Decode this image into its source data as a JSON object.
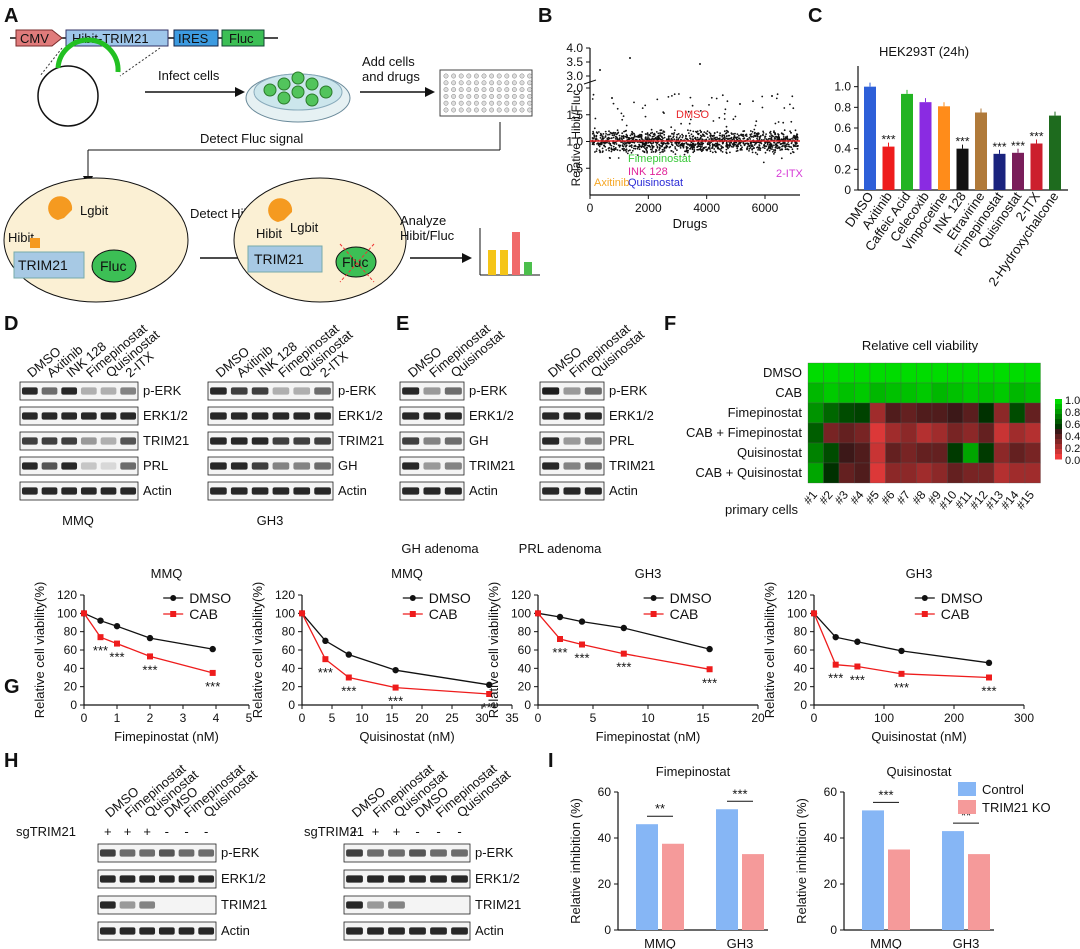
{
  "panels": [
    "A",
    "B",
    "C",
    "D",
    "E",
    "F",
    "G",
    "H",
    "I"
  ],
  "A": {
    "construct": [
      "CMV",
      "Hibit-TRIM21",
      "IRES",
      "Fluc"
    ],
    "infect": "Infect  cells",
    "add": "Add cells\nand drugs",
    "detect_fluc": "Detect Fluc signal",
    "detect_hibit": "Detect Hibit signal",
    "analyze": "Analyze\nHibit/Fluc",
    "lgbit": "Lgbit",
    "hibit": "Hibit",
    "trim21": "TRIM21",
    "fluc": "Fluc"
  },
  "B": {
    "ylabel": "Relative Hibit/Fluc",
    "xlabel": "Drugs",
    "yticks_low": [
      "0.5",
      "1.0",
      "1.5",
      "2.0"
    ],
    "yticks_high": [
      "3.0",
      "3.5",
      "4.0"
    ],
    "xticks": [
      "0",
      "2000",
      "4000",
      "6000"
    ],
    "labels": [
      {
        "text": "DMSO",
        "color": "#e8262a"
      },
      {
        "text": "Fimepinostat",
        "color": "#37c837"
      },
      {
        "text": "INK 128",
        "color": "#e0249a"
      },
      {
        "text": "Axitinib",
        "color": "#f5a623"
      },
      {
        "text": "Quisinostat",
        "color": "#2b2bd6"
      },
      {
        "text": "2-ITX",
        "color": "#d63bd6"
      }
    ]
  },
  "C": {
    "title": "HEK293T (24h)",
    "stars": "***",
    "yticks": [
      "0",
      "0.2",
      "0.4",
      "0.6",
      "0.8",
      "1.0"
    ],
    "chart_data": {
      "type": "bar",
      "title": "HEK293T (24h)",
      "categories": [
        "DMSO",
        "Axitinib",
        "Caffeic Acid",
        "Celecoxib",
        "Vinpocetine",
        "INK 128",
        "Etravirine",
        "Fimepinostat",
        "Quisinostat",
        "2-ITX",
        "2-Hydroxychalcone"
      ],
      "values": [
        1.0,
        0.42,
        0.93,
        0.85,
        0.81,
        0.4,
        0.75,
        0.35,
        0.36,
        0.45,
        0.72
      ],
      "colors": [
        "#2d5fd8",
        "#ee1c1c",
        "#22b422",
        "#8a2be2",
        "#ff8c1a",
        "#111111",
        "#b07a3a",
        "#1a237e",
        "#7a1e5a",
        "#cc1f2d",
        "#1e6b1e"
      ],
      "significant": [
        false,
        true,
        false,
        false,
        false,
        true,
        false,
        true,
        true,
        true,
        false
      ],
      "ylim": [
        0,
        1.2
      ]
    }
  },
  "D": {
    "left_lanes": [
      "DMSO",
      "Axitinib",
      "INK 128",
      "Fimepinostat",
      "Quisinostat",
      "2-ITX"
    ],
    "left_rows": [
      "p-ERK",
      "ERK1/2",
      "TRIM21",
      "PRL",
      "Actin"
    ],
    "left_label": "MMQ",
    "right_lanes": [
      "DMSO",
      "Axitinib",
      "INK 128",
      "Fimepinostat",
      "Quisinostat",
      "2-ITX"
    ],
    "right_rows": [
      "p-ERK",
      "ERK1/2",
      "TRIM21",
      "GH",
      "Actin"
    ],
    "right_label": "GH3"
  },
  "E": {
    "left_lanes": [
      "DMSO",
      "Fimepinostat",
      "Quisinostat"
    ],
    "left_rows": [
      "p-ERK",
      "ERK1/2",
      "GH",
      "TRIM21",
      "Actin"
    ],
    "left_label": "GH adenoma",
    "right_lanes": [
      "DMSO",
      "Fimepinostat",
      "Quisinostat"
    ],
    "right_rows": [
      "p-ERK",
      "ERK1/2",
      "PRL",
      "TRIM21",
      "Actin"
    ],
    "right_label": "PRL adenoma"
  },
  "F": {
    "title": "Relative cell viability",
    "rows": [
      "DMSO",
      "CAB",
      "Fimepinostat",
      "CAB + Fimepinostat",
      "Quisinostat",
      "CAB + Quisinostat"
    ],
    "cols_title": "primary cells",
    "cols": [
      "#1",
      "#2",
      "#3",
      "#4",
      "#5",
      "#6",
      "#7",
      "#8",
      "#9",
      "#10",
      "#11",
      "#12",
      "#13",
      "#14",
      "#15"
    ],
    "legend_ticks": [
      "1.0",
      "0.8",
      "0.6",
      "0.4",
      "0.2",
      "0.0"
    ],
    "chart_data": {
      "type": "heatmap",
      "title": "Relative cell viability",
      "values": [
        [
          1,
          1,
          1,
          1,
          1,
          1,
          1,
          1,
          1,
          1,
          1,
          1,
          1,
          1,
          1
        ],
        [
          0.8,
          0.9,
          0.85,
          0.9,
          0.8,
          0.85,
          0.85,
          0.9,
          0.8,
          0.85,
          0.9,
          0.85,
          0.9,
          0.8,
          0.85
        ],
        [
          0.6,
          0.35,
          0.2,
          0.15,
          -0.6,
          -0.2,
          -0.3,
          -0.2,
          -0.2,
          -0.1,
          -0.25,
          0.05,
          -0.5,
          0.2,
          -0.3
        ],
        [
          0.3,
          -0.4,
          -0.3,
          -0.4,
          -0.9,
          -0.6,
          -0.5,
          -0.7,
          -0.6,
          -0.4,
          -0.5,
          -0.3,
          -0.8,
          -0.6,
          -0.7
        ],
        [
          0.5,
          0.2,
          -0.1,
          -0.2,
          -0.8,
          -0.3,
          -0.4,
          -0.3,
          -0.3,
          0.1,
          0.7,
          0.1,
          -0.5,
          -0.3,
          -0.4
        ],
        [
          0.7,
          0.05,
          -0.3,
          -0.2,
          -0.9,
          -0.5,
          -0.5,
          -0.6,
          -0.5,
          -0.3,
          -0.4,
          -0.4,
          -0.7,
          -0.6,
          -0.6
        ]
      ]
    }
  },
  "G": {
    "ylabel": "Relative cell viability(%)",
    "legend": [
      "DMSO",
      "CAB"
    ],
    "stars": "***",
    "yticks": [
      "0",
      "20",
      "40",
      "60",
      "80",
      "100",
      "120"
    ],
    "chart_data": [
      {
        "type": "line",
        "title": "MMQ",
        "xlabel": "Fimepinostat (nM)",
        "xticks": [
          "0",
          "1",
          "2",
          "3",
          "4",
          "5"
        ],
        "xlim": [
          0,
          5
        ],
        "ylim": [
          0,
          120
        ],
        "series": [
          {
            "name": "DMSO",
            "x": [
              0,
              0.5,
              1,
              2,
              3.9
            ],
            "values": [
              100,
              92,
              86,
              73,
              61
            ]
          },
          {
            "name": "CAB",
            "x": [
              0,
              0.5,
              1,
              2,
              3.9
            ],
            "values": [
              100,
              74,
              67,
              53,
              35
            ]
          }
        ]
      },
      {
        "type": "line",
        "title": "MMQ",
        "xlabel": "Quisinostat (nM)",
        "xticks": [
          "0",
          "5",
          "10",
          "15",
          "20",
          "25",
          "30",
          "35"
        ],
        "xlim": [
          0,
          35
        ],
        "ylim": [
          0,
          120
        ],
        "series": [
          {
            "name": "DMSO",
            "x": [
              0,
              3.9,
              7.8,
              15.6,
              31.2
            ],
            "values": [
              100,
              70,
              55,
              38,
              22
            ]
          },
          {
            "name": "CAB",
            "x": [
              0,
              3.9,
              7.8,
              15.6,
              31.2
            ],
            "values": [
              100,
              50,
              30,
              19,
              12
            ]
          }
        ]
      },
      {
        "type": "line",
        "title": "GH3",
        "xlabel": "Fimepinostat (nM)",
        "xticks": [
          "0",
          "5",
          "10",
          "15",
          "20"
        ],
        "xlim": [
          0,
          20
        ],
        "ylim": [
          0,
          120
        ],
        "series": [
          {
            "name": "DMSO",
            "x": [
              0,
              2,
              4,
              7.8,
              15.6
            ],
            "values": [
              100,
              96,
              91,
              84,
              61
            ]
          },
          {
            "name": "CAB",
            "x": [
              0,
              2,
              4,
              7.8,
              15.6
            ],
            "values": [
              100,
              72,
              66,
              56,
              39
            ]
          }
        ]
      },
      {
        "type": "line",
        "title": "GH3",
        "xlabel": "Quisinostat (nM)",
        "xticks": [
          "0",
          "100",
          "200",
          "300"
        ],
        "xlim": [
          0,
          300
        ],
        "ylim": [
          0,
          120
        ],
        "series": [
          {
            "name": "DMSO",
            "x": [
              0,
              31,
              62,
              125,
              250
            ],
            "values": [
              100,
              74,
              69,
              59,
              46
            ]
          },
          {
            "name": "CAB",
            "x": [
              0,
              31,
              62,
              125,
              250
            ],
            "values": [
              100,
              44,
              42,
              34,
              30
            ]
          }
        ]
      }
    ]
  },
  "H": {
    "lanes": [
      "DMSO",
      "Fimepinostat",
      "Quisinostat",
      "DMSO",
      "Fimepinostat",
      "Quisinostat"
    ],
    "sg_label": "sgTRIM21",
    "sg_signs": [
      "+",
      "+",
      "+",
      "-",
      "-",
      "-"
    ],
    "rows": [
      "p-ERK",
      "ERK1/2",
      "TRIM21",
      "Actin"
    ]
  },
  "I": {
    "ylabel": "Relative inhibition (%)",
    "legend": [
      "Control",
      "TRIM21 KO"
    ],
    "legend_colors": [
      "#86b6f5",
      "#f59a9a"
    ],
    "yticks": [
      "0",
      "20",
      "40",
      "60"
    ],
    "chart_data": [
      {
        "type": "bar",
        "title": "Fimepinostat",
        "categories": [
          "MMQ",
          "GH3"
        ],
        "ylim": [
          0,
          60
        ],
        "series": [
          {
            "name": "Control",
            "values": [
              46,
              52.5
            ]
          },
          {
            "name": "TRIM21 KO",
            "values": [
              37.5,
              33
            ]
          }
        ],
        "significance": [
          "**",
          "***"
        ]
      },
      {
        "type": "bar",
        "title": "Quisinostat",
        "categories": [
          "MMQ",
          "GH3"
        ],
        "ylim": [
          0,
          60
        ],
        "series": [
          {
            "name": "Control",
            "values": [
              52,
              43
            ]
          },
          {
            "name": "TRIM21 KO",
            "values": [
              35,
              33
            ]
          }
        ],
        "significance": [
          "***",
          "**"
        ]
      }
    ]
  }
}
